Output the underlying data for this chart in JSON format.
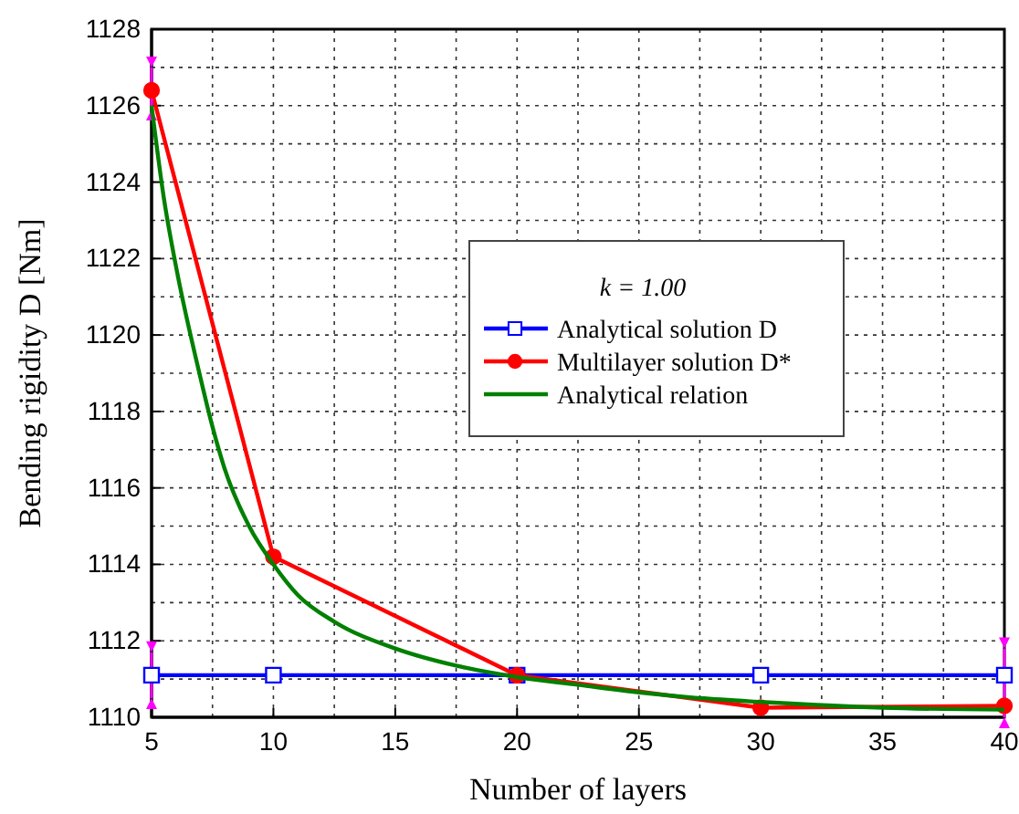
{
  "chart_data": {
    "type": "line",
    "xlabel": "Number of layers",
    "ylabel": "Bending rigidity D  [Nm]",
    "legend_title": "k = 1.00",
    "xlim": [
      5,
      40
    ],
    "xticks": [
      5,
      10,
      15,
      20,
      25,
      30,
      35,
      40
    ],
    "ylim": [
      1110,
      1128
    ],
    "yticks": [
      1110,
      1112,
      1114,
      1116,
      1118,
      1120,
      1122,
      1124,
      1126,
      1128
    ],
    "grid": true,
    "legend": "right",
    "line_style": "solid",
    "series": [
      {
        "name": "Analytical solution D",
        "color": "#0000ff",
        "marker": "square",
        "x": [
          5,
          10,
          20,
          30,
          40
        ],
        "values": [
          1111.1,
          1111.1,
          1111.1,
          1111.1,
          1111.1
        ],
        "errors": [
          [
            1110.5,
            1111.7
          ],
          null,
          null,
          null,
          [
            1110,
            1111.8
          ]
        ]
      },
      {
        "name": "Multilayer solution D*",
        "color": "#ff0000",
        "marker": "circle",
        "x": [
          5,
          10,
          20,
          30,
          40
        ],
        "values": [
          1126.4,
          1114.2,
          1111.1,
          1110.25,
          1110.3
        ],
        "errors": [
          [
            1125.9,
            1127
          ],
          null,
          null,
          null,
          null
        ]
      },
      {
        "name": "Analytical relation",
        "color": "#008000",
        "marker": "none",
        "x": [
          5,
          5.5,
          6,
          7,
          7.5,
          8,
          9,
          10,
          11,
          12.5,
          15,
          17.5,
          20,
          22.5,
          25,
          27.5,
          30,
          35,
          40
        ],
        "values": [
          1126,
          1123.6,
          1121.8,
          1118.9,
          1117.6,
          1116.5,
          1115,
          1114,
          1113.2,
          1112.5,
          1111.8,
          1111.35,
          1111.05,
          1110.85,
          1110.65,
          1110.5,
          1110.4,
          1110.25,
          1110.2
        ]
      }
    ]
  }
}
